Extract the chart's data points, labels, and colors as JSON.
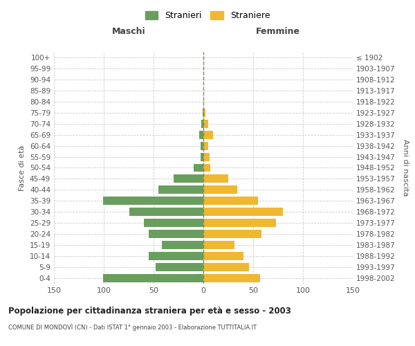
{
  "age_groups": [
    "0-4",
    "5-9",
    "10-14",
    "15-19",
    "20-24",
    "25-29",
    "30-34",
    "35-39",
    "40-44",
    "45-49",
    "50-54",
    "55-59",
    "60-64",
    "65-69",
    "70-74",
    "75-79",
    "80-84",
    "85-89",
    "90-94",
    "95-99",
    "100+"
  ],
  "birth_years": [
    "1998-2002",
    "1993-1997",
    "1988-1992",
    "1983-1987",
    "1978-1982",
    "1973-1977",
    "1968-1972",
    "1963-1967",
    "1958-1962",
    "1953-1957",
    "1948-1952",
    "1943-1947",
    "1938-1942",
    "1933-1937",
    "1928-1932",
    "1923-1927",
    "1918-1922",
    "1913-1917",
    "1908-1912",
    "1903-1907",
    "≤ 1902"
  ],
  "maschi": [
    101,
    48,
    55,
    42,
    55,
    60,
    74,
    101,
    45,
    30,
    10,
    3,
    3,
    4,
    2,
    1,
    0,
    0,
    0,
    0,
    0
  ],
  "femmine": [
    57,
    46,
    40,
    31,
    58,
    73,
    80,
    55,
    34,
    25,
    7,
    6,
    5,
    10,
    5,
    2,
    1,
    0,
    0,
    0,
    0
  ],
  "maschi_color": "#6a9e5e",
  "femmine_color": "#f0b830",
  "background_color": "#ffffff",
  "grid_color": "#cccccc",
  "title": "Popolazione per cittadinanza straniera per età e sesso - 2003",
  "subtitle": "COMUNE DI MONDOVÌ (CN) - Dati ISTAT 1° gennaio 2003 - Elaborazione TUTTITALIA.IT",
  "xlabel_left": "Maschi",
  "xlabel_right": "Femmine",
  "ylabel_left": "Fasce di età",
  "ylabel_right": "Anni di nascita",
  "legend_maschi": "Stranieri",
  "legend_femmine": "Straniere",
  "xlim": 150,
  "dashed_color": "#888855"
}
